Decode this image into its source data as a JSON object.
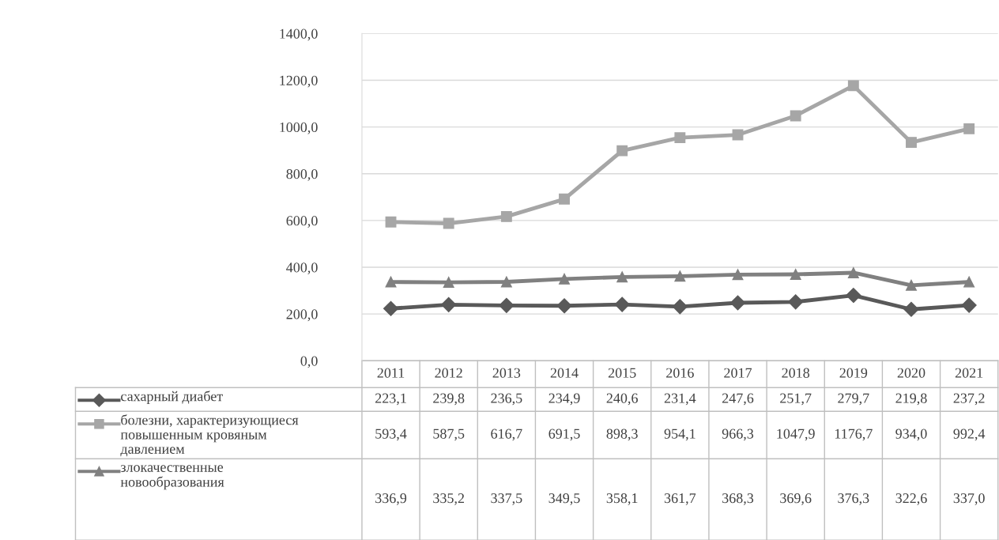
{
  "chart_data": {
    "type": "line",
    "categories": [
      "2011",
      "2012",
      "2013",
      "2014",
      "2015",
      "2016",
      "2017",
      "2018",
      "2019",
      "2020",
      "2021"
    ],
    "ylim": [
      0,
      1400
    ],
    "yticks": [
      {
        "value": 0,
        "label": "0,0"
      },
      {
        "value": 200,
        "label": "200,0"
      },
      {
        "value": 400,
        "label": "400,0"
      },
      {
        "value": 600,
        "label": "600,0"
      },
      {
        "value": 800,
        "label": "800,0"
      },
      {
        "value": 1000,
        "label": "1000,0"
      },
      {
        "value": 1200,
        "label": "1200,0"
      },
      {
        "value": 1400,
        "label": "1400,0"
      }
    ],
    "grid": "y",
    "legend": "bottom",
    "line_style": "solid",
    "series": [
      {
        "name": "сахарный диабет",
        "color": "#595959",
        "marker": "diamond",
        "values": [
          223.1,
          239.8,
          236.5,
          234.9,
          240.6,
          231.4,
          247.6,
          251.7,
          279.7,
          219.8,
          237.2
        ],
        "value_labels": [
          "223,1",
          "239,8",
          "236,5",
          "234,9",
          "240,6",
          "231,4",
          "247,6",
          "251,7",
          "279,7",
          "219,8",
          "237,2"
        ]
      },
      {
        "name": "болезни, характеризующиеся повышенным кровяным давлением",
        "color": "#a6a6a6",
        "marker": "square",
        "values": [
          593.4,
          587.5,
          616.7,
          691.5,
          898.3,
          954.1,
          966.3,
          1047.9,
          1176.7,
          934.0,
          992.4
        ],
        "value_labels": [
          "593,4",
          "587,5",
          "616,7",
          "691,5",
          "898,3",
          "954,1",
          "966,3",
          "1047,9",
          "1176,7",
          "934,0",
          "992,4"
        ]
      },
      {
        "name": "злокачественные новообразования",
        "color": "#808080",
        "marker": "triangle",
        "values": [
          336.9,
          335.2,
          337.5,
          349.5,
          358.1,
          361.7,
          368.3,
          369.6,
          376.3,
          322.6,
          337.0
        ],
        "value_labels": [
          "336,9",
          "335,2",
          "337,5",
          "349,5",
          "358,1",
          "361,7",
          "368,3",
          "369,6",
          "376,3",
          "322,6",
          "337,0"
        ]
      }
    ]
  }
}
